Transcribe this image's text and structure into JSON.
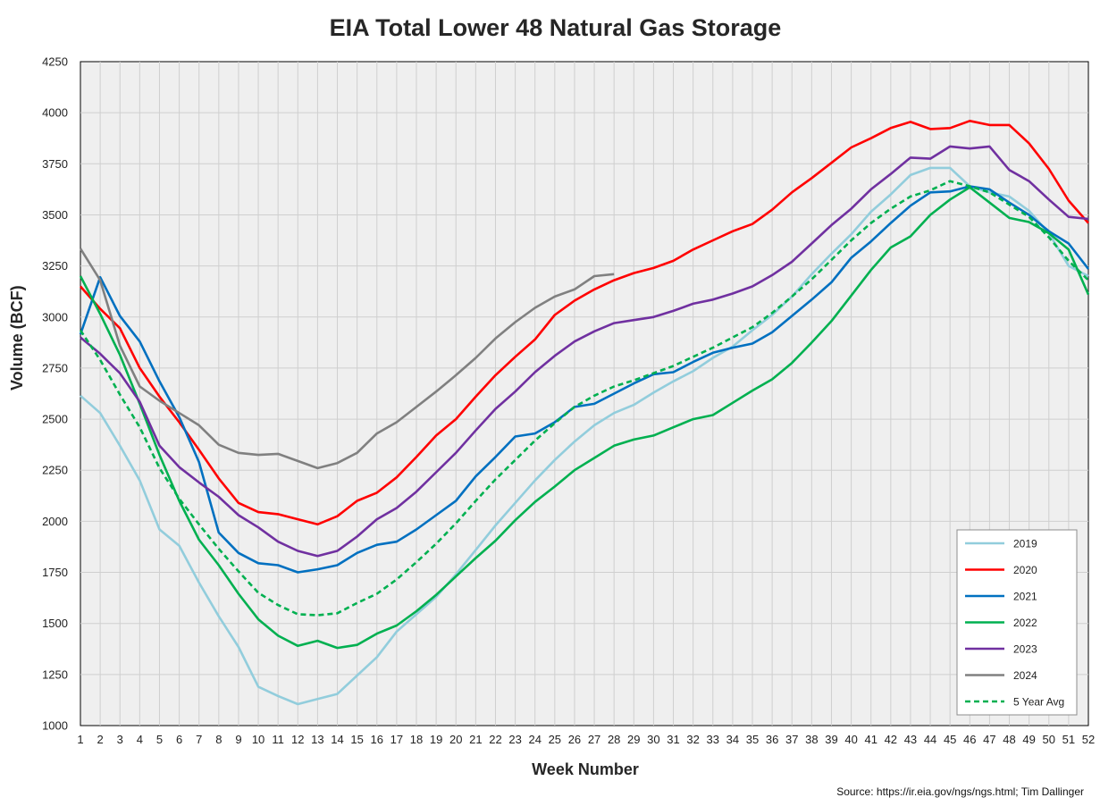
{
  "chart_data": {
    "type": "line",
    "title": "EIA Total Lower 48 Natural Gas Storage",
    "xlabel": "Week Number",
    "ylabel": "Volume (BCF)",
    "ylim": [
      1000,
      4250
    ],
    "yticks": [
      1000,
      1250,
      1500,
      1750,
      2000,
      2250,
      2500,
      2750,
      3000,
      3250,
      3500,
      3750,
      4000,
      4250
    ],
    "xlim": [
      1,
      52
    ],
    "grid": true,
    "legend_position": "bottom-right",
    "series": [
      {
        "name": "2019",
        "color": "#92cddc",
        "dashed": false,
        "values": [
          2615,
          2530,
          2370,
          2200,
          1960,
          1880,
          1700,
          1535,
          1385,
          1190,
          1145,
          1105,
          1130,
          1155,
          1245,
          1335,
          1460,
          1545,
          1630,
          1740,
          1860,
          1980,
          2090,
          2200,
          2300,
          2390,
          2470,
          2530,
          2570,
          2630,
          2685,
          2735,
          2800,
          2855,
          2935,
          3010,
          3100,
          3210,
          3310,
          3405,
          3515,
          3600,
          3695,
          3730,
          3730,
          3640,
          3610,
          3590,
          3520,
          3410,
          3250,
          3200
        ]
      },
      {
        "name": "2020",
        "color": "#ff0000",
        "dashed": false,
        "values": [
          3150,
          3040,
          2945,
          2750,
          2610,
          2485,
          2350,
          2210,
          2090,
          2045,
          2035,
          2010,
          1985,
          2025,
          2100,
          2140,
          2215,
          2315,
          2420,
          2500,
          2610,
          2715,
          2805,
          2890,
          3010,
          3080,
          3135,
          3180,
          3215,
          3240,
          3275,
          3330,
          3375,
          3420,
          3455,
          3525,
          3610,
          3680,
          3755,
          3830,
          3875,
          3925,
          3955,
          3920,
          3925,
          3960,
          3940,
          3940,
          3850,
          3725,
          3570,
          3460
        ]
      },
      {
        "name": "2021",
        "color": "#0070c0",
        "dashed": false,
        "values": [
          2915,
          3195,
          3005,
          2880,
          2685,
          2510,
          2290,
          1945,
          1845,
          1795,
          1785,
          1750,
          1765,
          1785,
          1845,
          1885,
          1900,
          1960,
          2030,
          2100,
          2220,
          2315,
          2415,
          2430,
          2485,
          2560,
          2575,
          2625,
          2675,
          2720,
          2730,
          2780,
          2825,
          2850,
          2870,
          2925,
          3005,
          3085,
          3170,
          3290,
          3370,
          3460,
          3545,
          3610,
          3615,
          3640,
          3625,
          3560,
          3500,
          3420,
          3360,
          3235
        ]
      },
      {
        "name": "2022",
        "color": "#00b050",
        "dashed": false,
        "values": [
          3200,
          3015,
          2815,
          2575,
          2325,
          2100,
          1910,
          1785,
          1645,
          1520,
          1440,
          1390,
          1415,
          1380,
          1395,
          1450,
          1490,
          1560,
          1640,
          1730,
          1820,
          1905,
          2005,
          2095,
          2170,
          2250,
          2310,
          2370,
          2400,
          2420,
          2460,
          2500,
          2520,
          2580,
          2640,
          2695,
          2775,
          2875,
          2980,
          3105,
          3230,
          3340,
          3395,
          3500,
          3575,
          3635,
          3560,
          3485,
          3465,
          3410,
          3330,
          3110
        ]
      },
      {
        "name": "2023",
        "color": "#7030a0",
        "dashed": false,
        "values": [
          2900,
          2820,
          2725,
          2585,
          2370,
          2265,
          2190,
          2120,
          2030,
          1970,
          1900,
          1855,
          1830,
          1855,
          1925,
          2010,
          2065,
          2145,
          2240,
          2335,
          2445,
          2550,
          2635,
          2730,
          2810,
          2880,
          2930,
          2970,
          2985,
          3000,
          3030,
          3065,
          3085,
          3115,
          3150,
          3205,
          3270,
          3360,
          3450,
          3530,
          3625,
          3700,
          3780,
          3775,
          3835,
          3825,
          3835,
          3720,
          3665,
          3575,
          3490,
          3480
        ]
      },
      {
        "name": "2024",
        "color": "#808080",
        "dashed": false,
        "values": [
          3335,
          3180,
          2860,
          2660,
          2590,
          2530,
          2470,
          2375,
          2335,
          2325,
          2330,
          2295,
          2260,
          2285,
          2335,
          2430,
          2485,
          2560,
          2635,
          2715,
          2800,
          2895,
          2975,
          3045,
          3100,
          3135,
          3200,
          3210
        ]
      },
      {
        "name": "5 Year Avg",
        "color": "#00b050",
        "dashed": true,
        "values": [
          2935,
          2790,
          2620,
          2460,
          2260,
          2110,
          1985,
          1865,
          1755,
          1650,
          1590,
          1545,
          1540,
          1550,
          1600,
          1645,
          1715,
          1800,
          1890,
          1990,
          2100,
          2205,
          2300,
          2395,
          2480,
          2560,
          2615,
          2660,
          2690,
          2725,
          2760,
          2805,
          2850,
          2900,
          2950,
          3020,
          3100,
          3185,
          3280,
          3375,
          3460,
          3530,
          3590,
          3620,
          3665,
          3640,
          3610,
          3550,
          3490,
          3390,
          3275,
          3180
        ]
      }
    ]
  },
  "source_text": "Source: https://ir.eia.gov/ngs/ngs.html; Tim Dallinger"
}
